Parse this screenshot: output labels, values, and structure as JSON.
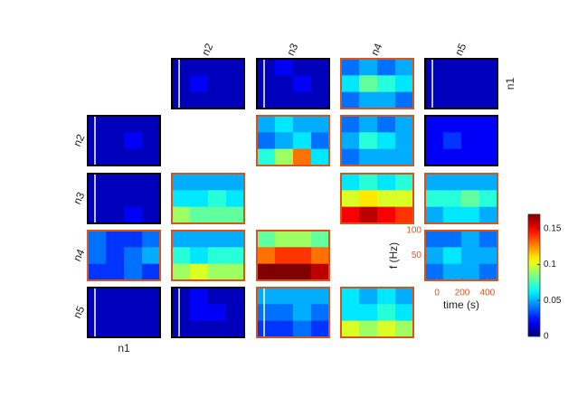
{
  "chart_data": {
    "type": "heatmap-grid",
    "nodes": [
      "n1",
      "n2",
      "n3",
      "n4",
      "n5"
    ],
    "clim": [
      0,
      0.17
    ],
    "cticks": [
      0,
      0.05,
      0.1,
      0.15
    ],
    "colormap": "jet",
    "highlight_color": "#d9541a",
    "border_color": "#000000",
    "axes_panel": {
      "row": "n4",
      "col": "n5",
      "ylabel": "f (Hz)",
      "xlabel": "time (s)",
      "ylim": [
        0,
        100
      ],
      "yticks": [
        50,
        100
      ],
      "xlim": [
        -95,
        480
      ],
      "xticks": [
        0,
        200,
        400
      ]
    },
    "panels": [
      {
        "row": "n1",
        "col": "n2",
        "highlight": false,
        "marker": true,
        "values": [
          [
            0.01,
            0.01,
            0.01,
            0.01
          ],
          [
            0.01,
            0.02,
            0.01,
            0.01
          ],
          [
            0.01,
            0.01,
            0.01,
            0.01
          ]
        ]
      },
      {
        "row": "n1",
        "col": "n3",
        "highlight": false,
        "marker": true,
        "values": [
          [
            0.01,
            0.02,
            0.01,
            0.01
          ],
          [
            0.01,
            0.01,
            0.02,
            0.01
          ],
          [
            0.01,
            0.01,
            0.01,
            0.01
          ]
        ]
      },
      {
        "row": "n1",
        "col": "n4",
        "highlight": true,
        "marker": false,
        "values": [
          [
            0.04,
            0.05,
            0.04,
            0.05
          ],
          [
            0.06,
            0.08,
            0.07,
            0.06
          ],
          [
            0.04,
            0.05,
            0.05,
            0.04
          ]
        ]
      },
      {
        "row": "n1",
        "col": "n5",
        "highlight": false,
        "marker": true,
        "values": [
          [
            0.01,
            0.01,
            0.01,
            0.01
          ],
          [
            0.01,
            0.01,
            0.01,
            0.01
          ],
          [
            0.01,
            0.01,
            0.01,
            0.01
          ]
        ]
      },
      {
        "row": "n2",
        "col": "n1",
        "highlight": false,
        "marker": true,
        "values": [
          [
            0.01,
            0.01,
            0.01,
            0.01
          ],
          [
            0.01,
            0.01,
            0.02,
            0.01
          ],
          [
            0.01,
            0.01,
            0.01,
            0.01
          ]
        ]
      },
      {
        "row": "n2",
        "col": "n3",
        "highlight": true,
        "marker": false,
        "values": [
          [
            0.05,
            0.06,
            0.05,
            0.05
          ],
          [
            0.04,
            0.05,
            0.06,
            0.04
          ],
          [
            0.07,
            0.09,
            0.13,
            0.06
          ]
        ]
      },
      {
        "row": "n2",
        "col": "n4",
        "highlight": true,
        "marker": false,
        "values": [
          [
            0.04,
            0.05,
            0.04,
            0.05
          ],
          [
            0.05,
            0.07,
            0.06,
            0.05
          ],
          [
            0.04,
            0.05,
            0.05,
            0.05
          ]
        ]
      },
      {
        "row": "n2",
        "col": "n5",
        "highlight": false,
        "marker": false,
        "values": [
          [
            0.02,
            0.02,
            0.02,
            0.02
          ],
          [
            0.02,
            0.03,
            0.02,
            0.02
          ],
          [
            0.02,
            0.02,
            0.02,
            0.02
          ]
        ]
      },
      {
        "row": "n3",
        "col": "n1",
        "highlight": false,
        "marker": true,
        "values": [
          [
            0.01,
            0.01,
            0.01,
            0.01
          ],
          [
            0.01,
            0.01,
            0.01,
            0.01
          ],
          [
            0.01,
            0.01,
            0.02,
            0.01
          ]
        ]
      },
      {
        "row": "n3",
        "col": "n2",
        "highlight": true,
        "marker": false,
        "values": [
          [
            0.05,
            0.05,
            0.05,
            0.05
          ],
          [
            0.06,
            0.06,
            0.07,
            0.06
          ],
          [
            0.09,
            0.08,
            0.08,
            0.08
          ]
        ]
      },
      {
        "row": "n3",
        "col": "n4",
        "highlight": true,
        "marker": false,
        "values": [
          [
            0.06,
            0.07,
            0.06,
            0.07
          ],
          [
            0.1,
            0.11,
            0.1,
            0.1
          ],
          [
            0.15,
            0.16,
            0.15,
            0.14
          ]
        ]
      },
      {
        "row": "n3",
        "col": "n5",
        "highlight": true,
        "marker": false,
        "values": [
          [
            0.05,
            0.05,
            0.05,
            0.05
          ],
          [
            0.07,
            0.07,
            0.08,
            0.07
          ],
          [
            0.05,
            0.06,
            0.06,
            0.05
          ]
        ]
      },
      {
        "row": "n4",
        "col": "n1",
        "highlight": true,
        "marker": false,
        "values": [
          [
            0.04,
            0.03,
            0.03,
            0.04
          ],
          [
            0.04,
            0.03,
            0.04,
            0.05
          ],
          [
            0.03,
            0.03,
            0.04,
            0.03
          ]
        ]
      },
      {
        "row": "n4",
        "col": "n2",
        "highlight": true,
        "marker": false,
        "values": [
          [
            0.05,
            0.05,
            0.05,
            0.05
          ],
          [
            0.07,
            0.06,
            0.07,
            0.07
          ],
          [
            0.09,
            0.1,
            0.09,
            0.09
          ]
        ]
      },
      {
        "row": "n4",
        "col": "n3",
        "highlight": true,
        "marker": false,
        "values": [
          [
            0.08,
            0.09,
            0.09,
            0.08
          ],
          [
            0.13,
            0.14,
            0.14,
            0.13
          ],
          [
            0.17,
            0.17,
            0.17,
            0.16
          ]
        ]
      },
      {
        "row": "n4",
        "col": "n5",
        "highlight": true,
        "marker": false,
        "values": [
          [
            0.04,
            0.04,
            0.05,
            0.04
          ],
          [
            0.05,
            0.06,
            0.05,
            0.05
          ],
          [
            0.04,
            0.05,
            0.05,
            0.04
          ]
        ]
      },
      {
        "row": "n5",
        "col": "n1",
        "highlight": false,
        "marker": true,
        "values": [
          [
            0.01,
            0.01,
            0.01,
            0.01
          ],
          [
            0.01,
            0.01,
            0.01,
            0.01
          ],
          [
            0.01,
            0.01,
            0.01,
            0.01
          ]
        ]
      },
      {
        "row": "n5",
        "col": "n2",
        "highlight": false,
        "marker": true,
        "values": [
          [
            0.01,
            0.02,
            0.01,
            0.01
          ],
          [
            0.01,
            0.02,
            0.02,
            0.01
          ],
          [
            0.01,
            0.01,
            0.01,
            0.01
          ]
        ]
      },
      {
        "row": "n5",
        "col": "n3",
        "highlight": true,
        "marker": true,
        "values": [
          [
            0.05,
            0.05,
            0.05,
            0.05
          ],
          [
            0.04,
            0.04,
            0.05,
            0.04
          ],
          [
            0.03,
            0.03,
            0.04,
            0.03
          ]
        ]
      },
      {
        "row": "n5",
        "col": "n4",
        "highlight": true,
        "marker": false,
        "values": [
          [
            0.06,
            0.05,
            0.06,
            0.05
          ],
          [
            0.06,
            0.06,
            0.07,
            0.06
          ],
          [
            0.1,
            0.09,
            0.1,
            0.09
          ]
        ]
      }
    ]
  }
}
